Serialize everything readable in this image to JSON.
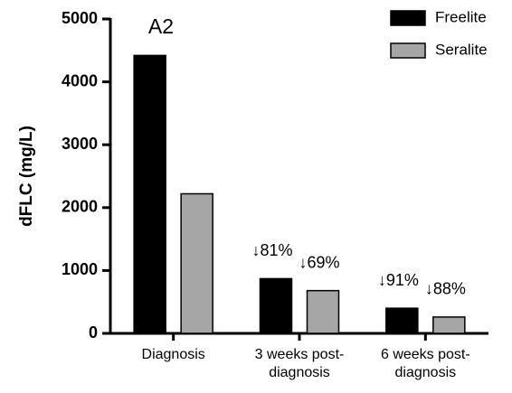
{
  "chart_data": {
    "type": "bar",
    "title": "A2",
    "y_label": "dFLC (mg/L)",
    "categories": [
      "Diagnosis",
      "3 weeks post-diagnosis",
      "6 weeks post-diagnosis"
    ],
    "series": [
      {
        "name": "Freelite",
        "color": "#000000",
        "values": [
          4420,
          870,
          400
        ]
      },
      {
        "name": "Seralite",
        "color": "#a6a6a6",
        "values": [
          2220,
          680,
          260
        ]
      }
    ],
    "annotations": [
      [
        "↓81%",
        "↓91%"
      ],
      [
        "↓69%",
        "↓88%"
      ]
    ],
    "ylim": [
      0,
      5000
    ],
    "yticks": [
      0,
      1000,
      2000,
      3000,
      4000,
      5000
    ],
    "legend": "top-right"
  }
}
